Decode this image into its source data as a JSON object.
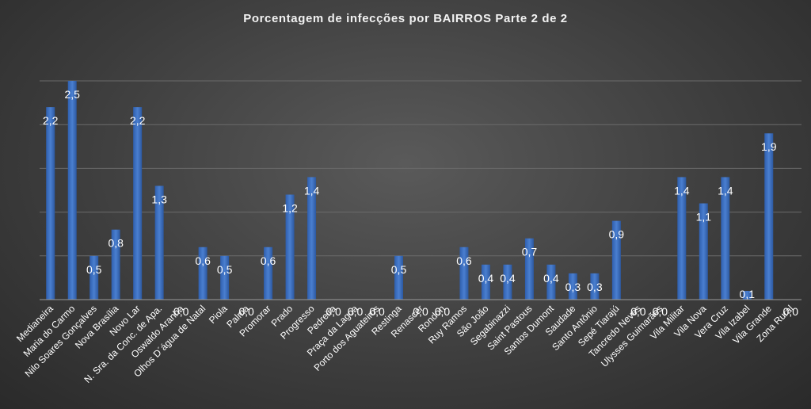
{
  "chart_data": {
    "type": "bar",
    "title": "Porcentagem  de infecções  por  BAIRROS  Parte  2 de 2",
    "xlabel": "",
    "ylabel": "",
    "ylim": [
      0,
      2.5
    ],
    "grid": true,
    "bar_color": "#4a7fd0",
    "categories": [
      "Medianeira",
      "Maria do Carmo",
      "Nilo Soares Gonçalves",
      "Nova Brasília",
      "Novo Lar",
      "N. Sra. da Conc. de Apa.",
      "Oswaldo Aranha",
      "Olhos D´água de Natal",
      "Piola",
      "Palma",
      "Promorar",
      "Prado",
      "Progresso",
      "Pedreira",
      "Praça da Lagoa",
      "Porto dos Aguateiros",
      "Restinga",
      "Renascer",
      "Rondon",
      "Ruy Ramos",
      "São João",
      "Segabinazzi",
      "Saint Pastous",
      "Santos Dumont",
      "Saudade",
      "Santo Antônio",
      "Sepé Tiarajú",
      "Tancredo Neves",
      "Ulysses Guimarães",
      "Vila Militar",
      "Vila Nova",
      "Vera Cruz",
      "Vila Izabel",
      "Vila Grande",
      "Zona Rural"
    ],
    "values": [
      2.2,
      2.5,
      0.5,
      0.8,
      2.2,
      1.3,
      0.0,
      0.6,
      0.5,
      0.0,
      0.6,
      1.2,
      1.4,
      0.0,
      0.0,
      0.0,
      0.5,
      0.0,
      0.0,
      0.6,
      0.4,
      0.4,
      0.7,
      0.4,
      0.3,
      0.3,
      0.9,
      0.0,
      0.0,
      1.4,
      1.1,
      1.4,
      0.1,
      1.9,
      0.0
    ],
    "bar_heights_pct": [
      2.2,
      2.5,
      0.5,
      0.8,
      2.2,
      1.3,
      0,
      0.6,
      0.5,
      0,
      0.6,
      1.2,
      1.4,
      0,
      0,
      0,
      0.5,
      0,
      0,
      0.6,
      0.4,
      0.4,
      0.7,
      0.4,
      0.3,
      0.3,
      0.9,
      0,
      0,
      1.4,
      1.1,
      1.4,
      0.1,
      1.9,
      0
    ],
    "value_labels": [
      "2,2",
      "2,5",
      "0,5",
      "0,8",
      "2,2",
      "1,3",
      "0,0",
      "0,6",
      "0,5",
      "0,0",
      "0,6",
      "1,2",
      "1,4",
      "0,0",
      "0,0",
      "0,0",
      "0,5",
      "0,0",
      "0,0",
      "0,6",
      "0,4",
      "0,4",
      "0,7",
      "0,4",
      "0,3",
      "0,3",
      "0,9",
      "0,0",
      "0,0",
      "1,4",
      "1,1",
      "1,4",
      "0,1",
      "1,9",
      "0,0"
    ]
  }
}
